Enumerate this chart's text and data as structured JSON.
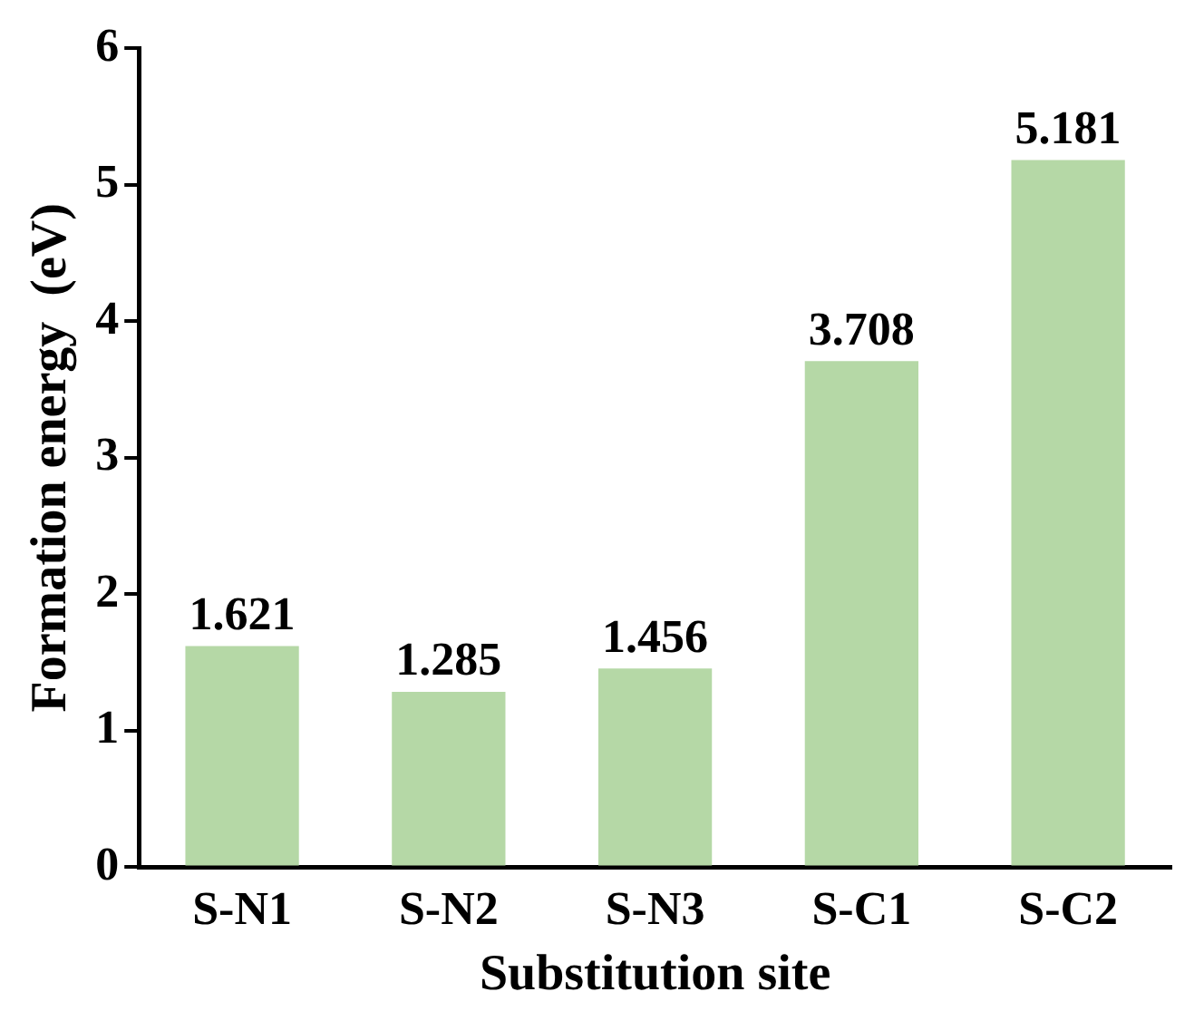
{
  "chart_data": {
    "type": "bar",
    "xlabel": "Substitution site",
    "ylabel": "Formation energy  (eV)",
    "categories": [
      "S-N1",
      "S-N2",
      "S-N3",
      "S-C1",
      "S-C2"
    ],
    "values": [
      1.621,
      1.285,
      1.456,
      3.708,
      5.181
    ],
    "color": "#b5d8a6",
    "ylim": [
      0,
      6
    ],
    "yticks": [
      0,
      1,
      2,
      3,
      4,
      5,
      6
    ],
    "grid": false,
    "legend": false,
    "data_labels": true
  }
}
